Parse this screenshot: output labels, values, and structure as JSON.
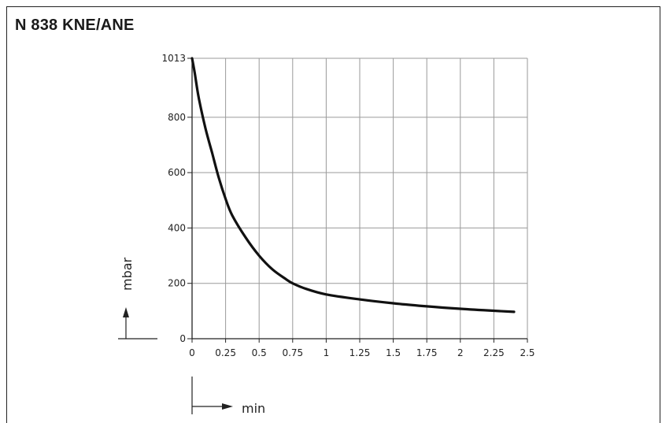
{
  "chart_data": {
    "type": "line",
    "title": "N 838 KNE/ANE",
    "xlabel": "min",
    "ylabel": "mbar",
    "xlim": [
      0,
      2.5
    ],
    "ylim": [
      0,
      1013
    ],
    "x_ticks": [
      0,
      0.25,
      0.5,
      0.75,
      1,
      1.25,
      1.5,
      1.75,
      2,
      2.25,
      2.5
    ],
    "x_tick_labels": [
      "0",
      "0.25",
      "0.5",
      "0.75",
      "1",
      "1.25",
      "1.5",
      "1.75",
      "2",
      "2.25",
      "2.5"
    ],
    "y_ticks": [
      0,
      200,
      400,
      600,
      800,
      1013
    ],
    "y_tick_labels": [
      "0",
      "200",
      "400",
      "600",
      "800",
      "1013"
    ],
    "grid": true,
    "series": [
      {
        "x": [
          0,
          0.02,
          0.05,
          0.1,
          0.15,
          0.2,
          0.25,
          0.3,
          0.4,
          0.5,
          0.6,
          0.7,
          0.75,
          0.85,
          1.0,
          1.25,
          1.5,
          1.75,
          2.0,
          2.25,
          2.4
        ],
        "values": [
          1013,
          960,
          870,
          760,
          670,
          580,
          505,
          445,
          365,
          300,
          250,
          215,
          200,
          180,
          160,
          142,
          128,
          117,
          108,
          101,
          97
        ],
        "color": "#111111"
      }
    ]
  }
}
